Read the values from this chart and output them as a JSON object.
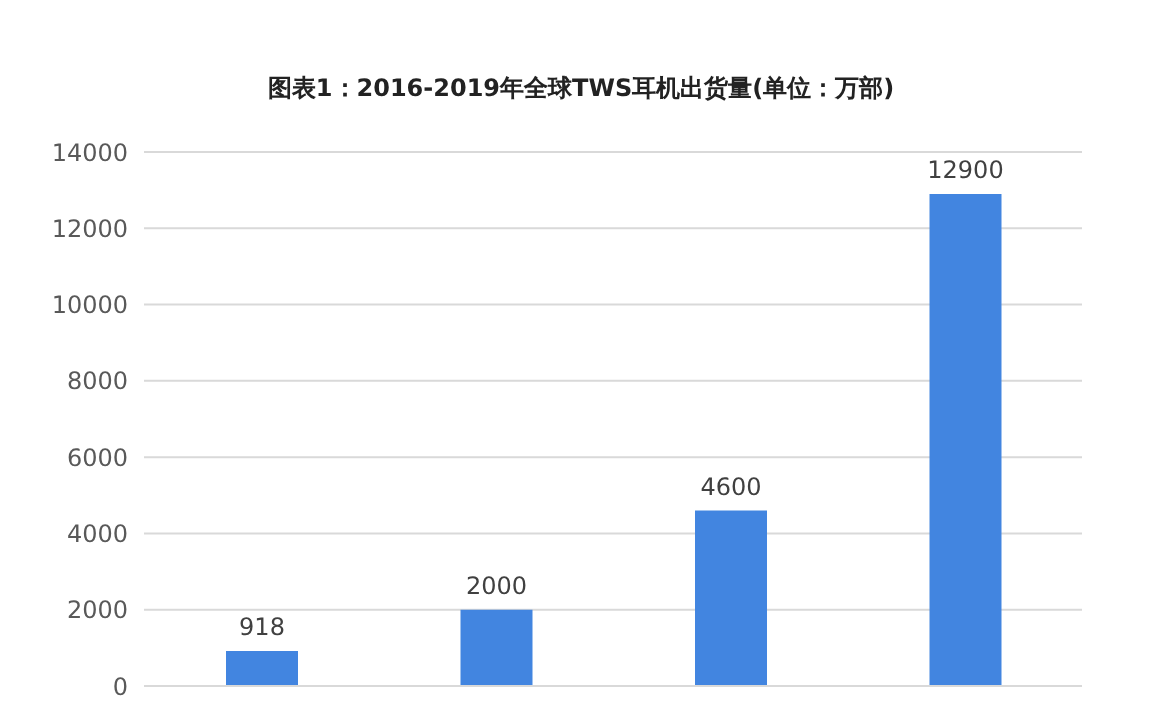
{
  "chart_data": {
    "type": "bar",
    "title": "图表1：2016-2019年全球TWS耳机出货量(单位：万部)",
    "categories": [
      null,
      null,
      null,
      null
    ],
    "values": [
      918,
      2000,
      4600,
      12900
    ],
    "color": "#4285e0",
    "ylim": [
      0,
      14000
    ],
    "yticks": [
      0,
      2000,
      4000,
      6000,
      8000,
      10000,
      12000,
      14000
    ],
    "grid": "y",
    "data_labels": true
  }
}
